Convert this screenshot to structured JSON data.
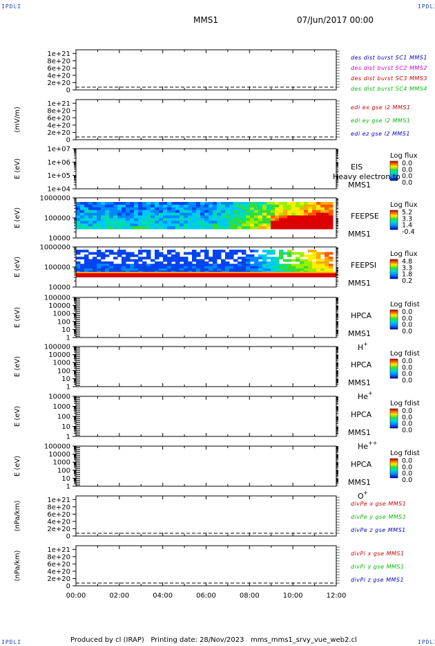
{
  "corner_label": "IPDLI",
  "header": {
    "spacecraft": "MMS1",
    "datetime": "07/Jun/2017 00:00"
  },
  "footer": "Produced by cl (IRAP)   Printing date: 28/Nov/2023   mms_mms1_srvy_vue_web2.cl",
  "chart_data": [
    {
      "type": "line",
      "id": "dist",
      "ylabel": "",
      "yticks": [
        "0",
        "2e+20",
        "4e+20",
        "6e+20",
        "8e+20",
        "1e+21"
      ],
      "ylim": [
        0,
        1.1e+21
      ],
      "series": [
        {
          "name": "des dist burst SC1 MMS1",
          "color": "#0000cc",
          "values": [
            0
          ]
        },
        {
          "name": "des dist burst SC2 MMS2",
          "color": "#cc00cc",
          "values": [
            0
          ]
        },
        {
          "name": "des dist burst SC3 MMS3",
          "color": "#cc0000",
          "values": [
            0
          ]
        },
        {
          "name": "des dist burst SC4 MMS4",
          "color": "#00bb00",
          "values": [
            0
          ]
        }
      ]
    },
    {
      "type": "line",
      "id": "edi",
      "ylabel": "(mV/m)",
      "yticks": [
        "0",
        "2e+20",
        "4e+20",
        "6e+20",
        "8e+20",
        "1e+21"
      ],
      "ylim": [
        0,
        1.1e+21
      ],
      "series": [
        {
          "name": "edi ex gse l2 MMS1",
          "color": "#cc0000",
          "values": [
            0
          ]
        },
        {
          "name": "edi ey gse l2 MMS1",
          "color": "#00bb00",
          "values": [
            0
          ]
        },
        {
          "name": "edi ez gse l2 MMS1",
          "color": "#0000cc",
          "values": [
            0
          ]
        }
      ]
    },
    {
      "type": "heatmap",
      "id": "eis",
      "ylabel": "E (eV)",
      "scale": "log",
      "yticks": [
        "1e+04",
        "1e+05",
        "1e+06",
        "1e+07"
      ],
      "instrument": "EIS",
      "spacecraft": "MMS1",
      "overlay": "Heavy electron to",
      "colorbar_title": "Log flux",
      "colorbar_ticks": [
        "0.0",
        "0.0",
        "0.0",
        "0.0"
      ],
      "data": "empty"
    },
    {
      "type": "heatmap",
      "id": "feepse",
      "ylabel": "E (eV)",
      "scale": "log",
      "yticks": [
        "10000",
        "100000",
        "1000000"
      ],
      "instrument": "FEEPSE",
      "spacecraft": "MMS1",
      "colorbar_title": "Log flux",
      "colorbar_ticks": [
        "5.2",
        "3.3",
        "1.4",
        "-0.4"
      ]
    },
    {
      "type": "heatmap",
      "id": "feepsi",
      "ylabel": "E (eV)",
      "scale": "log",
      "yticks": [
        "10000",
        "100000",
        "1000000"
      ],
      "instrument": "FEEPSI",
      "spacecraft": "MMS1",
      "colorbar_title": "Log flux",
      "colorbar_ticks": [
        "4.8",
        "3.3",
        "1.8",
        "0.2"
      ]
    },
    {
      "type": "heatmap",
      "id": "hpca_h",
      "ylabel": "E (eV)",
      "scale": "log",
      "yticks": [
        "1",
        "10",
        "100",
        "1000",
        "10000",
        "100000"
      ],
      "instrument": "HPCA",
      "spacecraft": "MMS1",
      "species": "H",
      "charge": "+",
      "colorbar_title": "Log fdist",
      "colorbar_ticks": [
        "0.0",
        "0.0",
        "0.0",
        "0.0"
      ],
      "data": "empty"
    },
    {
      "type": "heatmap",
      "id": "hpca_he",
      "ylabel": "E (eV)",
      "scale": "log",
      "yticks": [
        "1",
        "10",
        "100",
        "1000",
        "10000",
        "100000"
      ],
      "instrument": "HPCA",
      "spacecraft": "MMS1",
      "species": "He",
      "charge": "+",
      "colorbar_title": "Log fdist",
      "colorbar_ticks": [
        "0.0",
        "0.0",
        "0.0",
        "0.0"
      ],
      "data": "empty"
    },
    {
      "type": "heatmap",
      "id": "hpca_he2",
      "ylabel": "E (eV)",
      "scale": "log",
      "yticks": [
        "1",
        "10",
        "100",
        "1000",
        "10000"
      ],
      "instrument": "HPCA",
      "spacecraft": "MMS1",
      "species": "He",
      "charge": "++",
      "colorbar_title": "Log fdist",
      "colorbar_ticks": [
        "0.0",
        "0.0",
        "0.0",
        "0.0"
      ],
      "data": "empty"
    },
    {
      "type": "heatmap",
      "id": "hpca_o",
      "ylabel": "E (eV)",
      "scale": "log",
      "yticks": [
        "1",
        "10",
        "100",
        "1000",
        "10000",
        "100000"
      ],
      "instrument": "HPCA",
      "spacecraft": "MMS1",
      "species": "O",
      "charge": "+",
      "colorbar_title": "Log fdist",
      "colorbar_ticks": [
        "0.0",
        "0.0",
        "0.0",
        "0.0"
      ],
      "data": "empty"
    },
    {
      "type": "line",
      "id": "divpe",
      "ylabel": "(nPa/km)",
      "yticks": [
        "0",
        "2e+20",
        "4e+20",
        "6e+20",
        "8e+20",
        "1e+21"
      ],
      "ylim": [
        0,
        1.1e+21
      ],
      "series": [
        {
          "name": "divPe x gse MMS1",
          "color": "#cc0000",
          "values": [
            0
          ]
        },
        {
          "name": "divPe y gse MMS1",
          "color": "#00bb00",
          "values": [
            0
          ]
        },
        {
          "name": "divPe z gse MMS1",
          "color": "#0000cc",
          "values": [
            0
          ]
        }
      ]
    },
    {
      "type": "line",
      "id": "divpi",
      "ylabel": "(nPa/km)",
      "yticks": [
        "0",
        "2e+20",
        "4e+20",
        "6e+20",
        "8e+20",
        "1e+21"
      ],
      "ylim": [
        0,
        1.1e+21
      ],
      "series": [
        {
          "name": "divPi x gse MMS1",
          "color": "#cc0000",
          "values": [
            0
          ]
        },
        {
          "name": "divPi y gse MMS1",
          "color": "#00bb00",
          "values": [
            0
          ]
        },
        {
          "name": "divPi z gse MMS1",
          "color": "#0000cc",
          "values": [
            0
          ]
        }
      ]
    }
  ],
  "xaxis": {
    "ticks": [
      "00:00",
      "02:00",
      "04:00",
      "06:00",
      "08:00",
      "10:00",
      "12:00"
    ],
    "range_hours": [
      0,
      12
    ]
  }
}
